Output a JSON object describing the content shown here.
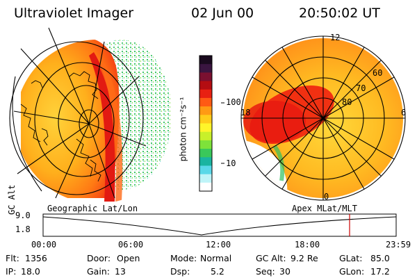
{
  "header": {
    "instrument": "Ultraviolet Imager",
    "date": "02 Jun 00",
    "time": "20:50:02 UT"
  },
  "colorbar": {
    "label": "photon cm⁻²s⁻¹",
    "ticks": [
      "100",
      "10"
    ],
    "colors": [
      "#1a0a1e",
      "#3a1540",
      "#7a1030",
      "#b40d12",
      "#e82012",
      "#ff5a14",
      "#ff9a14",
      "#ffcc1a",
      "#fff52a",
      "#c8f02a",
      "#7ee23a",
      "#3ac85a",
      "#1ab4a0",
      "#5ad8e8",
      "#bff4f8",
      "#ffffff"
    ]
  },
  "left_panel": {
    "label": "Geographic Lat/Lon"
  },
  "right_panel": {
    "label": "Apex MLat/MLT",
    "mlt_labels": [
      "12",
      "6",
      "0",
      "18"
    ],
    "mlat_labels": [
      "60",
      "70",
      "80"
    ]
  },
  "timeline": {
    "ylabel": "GC Alt",
    "yticks": [
      "9.0",
      "1.8"
    ],
    "xticks": [
      "00:00",
      "06:00",
      "12:00",
      "18:00",
      "23:59"
    ],
    "marker_color": "#cc0000"
  },
  "info": {
    "row1": [
      {
        "k": "Flt:",
        "v": "1356"
      },
      {
        "k": "Door:",
        "v": "Open"
      },
      {
        "k": "Mode:",
        "v": "Normal"
      },
      {
        "k": "GC Alt:",
        "v": "9.2 Re"
      },
      {
        "k": "GLat:",
        "v": "85.0"
      }
    ],
    "row2": [
      {
        "k": "IP:",
        "v": "18.0"
      },
      {
        "k": "Gain:",
        "v": "13"
      },
      {
        "k": "Dsp:",
        "v": "5.2"
      },
      {
        "k": "Seq:",
        "v": "30"
      },
      {
        "k": "GLon:",
        "v": "17.2"
      }
    ]
  }
}
